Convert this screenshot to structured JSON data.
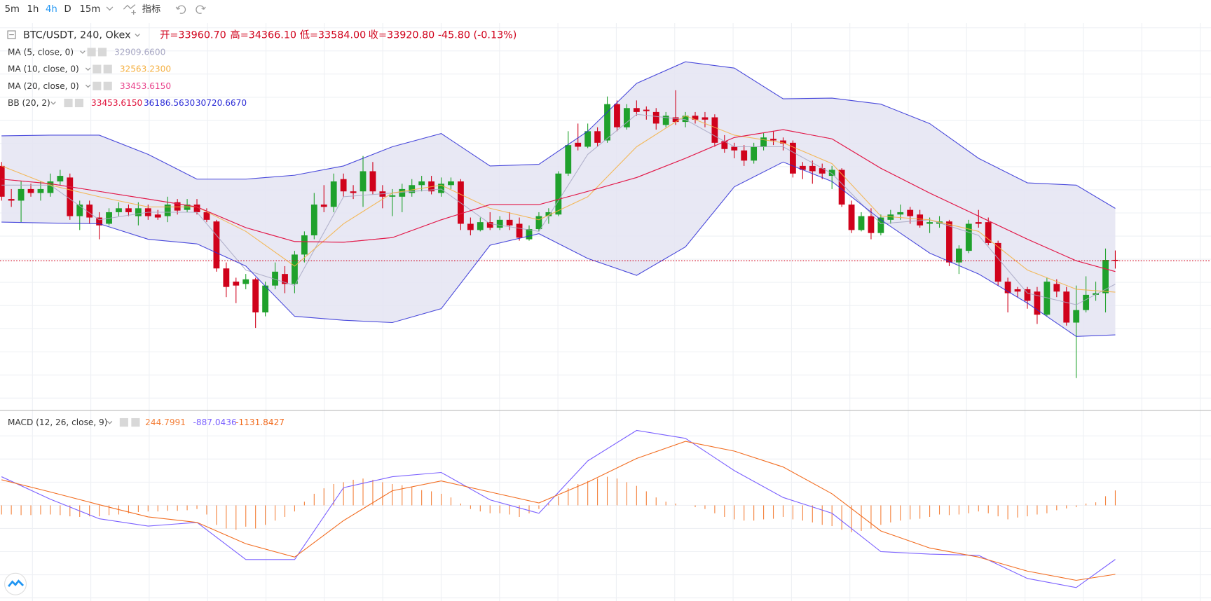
{
  "toolbar": {
    "intervals": [
      "5m",
      "1h",
      "4h",
      "D",
      "15m"
    ],
    "active": "4h",
    "indicators_button": "指标"
  },
  "header": {
    "symbol": "BTC/USDT, 240, Okex",
    "quote": [
      "开=33960.70",
      "高=34366.10",
      "低=33584.00",
      "收=33920.80",
      "-45.80 (-0.13%)"
    ]
  },
  "chart_data": {
    "type": "candlestick",
    "ylim": [
      27520,
      44190
    ],
    "up_color": "#1fa12c",
    "down_color": "#d0021b",
    "open": [
      38020,
      36590,
      36520,
      37020,
      36850,
      36850,
      37350,
      37520,
      35850,
      36350,
      35790,
      35520,
      36020,
      36190,
      35850,
      36190,
      35920,
      35850,
      36450,
      36120,
      36350,
      36020,
      35620,
      33590,
      33020,
      32920,
      33120,
      31690,
      32850,
      33350,
      32920,
      34190,
      35020,
      36350,
      36250,
      37450,
      36920,
      36920,
      37790,
      36920,
      36690,
      36690,
      36850,
      37190,
      37350,
      36850,
      37190,
      37350,
      35520,
      35250,
      35590,
      35350,
      35690,
      35520,
      34850,
      35290,
      35850,
      35920,
      37690,
      39020,
      38850,
      39520,
      39120,
      40690,
      39690,
      40520,
      40450,
      40350,
      39790,
      40120,
      39920,
      40190,
      40120,
      40120,
      39090,
      38850,
      38690,
      38250,
      38850,
      39190,
      39120,
      39020,
      38020,
      38020,
      37920,
      37590,
      37850,
      36350,
      35250,
      35850,
      35120,
      35690,
      35920,
      36120,
      35920,
      35520,
      35520,
      35620,
      33850,
      34350,
      35590,
      35590,
      34690,
      33020,
      32690,
      32690,
      32590,
      31590,
      32920,
      32590,
      31250,
      31790,
      32450,
      32520,
      33960.7
    ],
    "high": [
      38190,
      37020,
      37350,
      37250,
      37350,
      37690,
      37850,
      37690,
      36520,
      36520,
      36020,
      36190,
      36450,
      36350,
      36450,
      36350,
      36120,
      36690,
      36590,
      36590,
      36590,
      36190,
      35690,
      33850,
      33190,
      33350,
      33190,
      33020,
      33850,
      33690,
      34350,
      35190,
      36850,
      37190,
      37690,
      37690,
      37190,
      38450,
      38190,
      37190,
      37020,
      37250,
      37450,
      37590,
      37590,
      37520,
      37520,
      37450,
      35790,
      35790,
      36020,
      35850,
      36020,
      35790,
      35450,
      36020,
      36190,
      37790,
      39520,
      39850,
      39850,
      39690,
      41020,
      40850,
      40690,
      40850,
      40590,
      40520,
      40350,
      41290,
      40350,
      40350,
      40350,
      40250,
      39350,
      39020,
      38920,
      39020,
      39450,
      39520,
      39250,
      39120,
      38190,
      38250,
      38120,
      38020,
      37920,
      36520,
      36020,
      36190,
      35920,
      36120,
      36350,
      36250,
      36120,
      35790,
      35850,
      35690,
      34590,
      35690,
      36120,
      35790,
      34790,
      33190,
      32790,
      32790,
      32790,
      33190,
      33120,
      32790,
      32850,
      33250,
      33020,
      34450,
      34366.1
    ],
    "low": [
      36520,
      36250,
      35590,
      36690,
      36520,
      36690,
      37190,
      35690,
      35250,
      35520,
      34850,
      35450,
      35850,
      35850,
      35450,
      35690,
      35690,
      35590,
      35920,
      36020,
      35920,
      35590,
      33450,
      32350,
      32090,
      32690,
      31020,
      31520,
      32690,
      32520,
      32520,
      33850,
      34850,
      36020,
      36020,
      36690,
      36590,
      36250,
      36790,
      36190,
      35850,
      36020,
      36690,
      36920,
      36790,
      36690,
      37020,
      35250,
      35020,
      35190,
      35250,
      35250,
      35250,
      34790,
      34790,
      35190,
      35520,
      35850,
      37590,
      38690,
      38790,
      38850,
      39020,
      39520,
      39590,
      40190,
      40020,
      39590,
      39690,
      39790,
      39690,
      39850,
      39690,
      38850,
      38590,
      38350,
      38020,
      38120,
      38690,
      38920,
      38690,
      37520,
      37450,
      37250,
      37450,
      37020,
      36250,
      35120,
      35190,
      34850,
      35020,
      35520,
      35690,
      35520,
      35350,
      35120,
      35350,
      33690,
      33350,
      34250,
      35350,
      34590,
      32850,
      31690,
      32350,
      31850,
      31190,
      31520,
      32350,
      31120,
      28850,
      31690,
      32190,
      31690,
      33584
    ],
    "close": [
      36690,
      36520,
      37020,
      36850,
      37020,
      37350,
      37590,
      35850,
      36350,
      35790,
      35450,
      36020,
      36190,
      36020,
      36190,
      35850,
      35790,
      36350,
      36090,
      36350,
      36020,
      35690,
      33590,
      32790,
      32850,
      33120,
      31690,
      32850,
      33450,
      32920,
      34190,
      35020,
      36350,
      36250,
      37350,
      36920,
      36850,
      37790,
      36920,
      36690,
      36750,
      37020,
      37190,
      37350,
      36920,
      37250,
      37350,
      35520,
      35250,
      35590,
      35350,
      35690,
      35450,
      34920,
      35290,
      35850,
      36020,
      37690,
      38920,
      38850,
      39520,
      39020,
      40690,
      39690,
      40520,
      40350,
      40390,
      39850,
      40190,
      39920,
      40190,
      40020,
      40020,
      39020,
      38750,
      38690,
      38250,
      38850,
      39250,
      39120,
      38990,
      37690,
      37850,
      37790,
      37690,
      37850,
      36350,
      35250,
      35850,
      35120,
      35790,
      35920,
      36020,
      35850,
      35450,
      35590,
      35620,
      33850,
      34450,
      35520,
      35520,
      34690,
      33020,
      32520,
      32590,
      32190,
      31590,
      33020,
      32590,
      31250,
      31790,
      32450,
      32520,
      33960,
      33920.8
    ],
    "indicators": [
      {
        "name": "MA (5, close, 0)",
        "lines": [
          {
            "label": "32909.6600",
            "color": "#a8a8c4",
            "x": [
              0,
              5,
              10,
              15,
              20,
              25,
              30,
              35,
              40,
              45,
              50,
              55,
              60,
              65,
              70,
              75,
              80,
              85,
              90,
              95,
              100,
              105,
              110,
              114
            ],
            "values": [
              37190,
              37190,
              35690,
              36020,
              36020,
              33520,
              32850,
              36690,
              36850,
              37020,
              35520,
              35190,
              38520,
              40250,
              40020,
              38850,
              38850,
              37690,
              35520,
              35690,
              35020,
              32520,
              32020,
              32909.66
            ]
          }
        ]
      },
      {
        "name": "MA (10, close, 0)",
        "lines": [
          {
            "label": "32563.2300",
            "color": "#f5b041",
            "x": [
              0,
              5,
              10,
              15,
              20,
              25,
              30,
              35,
              40,
              45,
              50,
              55,
              60,
              65,
              70,
              75,
              80,
              85,
              90,
              95,
              100,
              105,
              110,
              114
            ],
            "values": [
              38020,
              37190,
              36690,
              36250,
              36250,
              35190,
              33690,
              35520,
              36850,
              37190,
              36190,
              35690,
              36690,
              38850,
              40190,
              39350,
              39020,
              38120,
              35850,
              35690,
              35190,
              33520,
              32690,
              32563.23
            ]
          }
        ]
      },
      {
        "name": "MA (20, close, 0)",
        "lines": [
          {
            "label": "33453.6150",
            "color": "#e8408a",
            "x": [
              0,
              5,
              10,
              15,
              20,
              25,
              30,
              35,
              40,
              45,
              50,
              55,
              60,
              65,
              70,
              75,
              80,
              85,
              90,
              95,
              100,
              105,
              110,
              114
            ],
            "values": [
              37450,
              37250,
              36920,
              36590,
              36250,
              35350,
              34750,
              34720,
              34920,
              35690,
              36350,
              36350,
              36920,
              37520,
              38350,
              39250,
              39590,
              39190,
              37920,
              36850,
              35850,
              34850,
              33920,
              33453.615
            ]
          }
        ]
      },
      {
        "name": "BB (20, 2)",
        "fill": "#e4e4f2",
        "lines": [
          {
            "label": "33453.6150",
            "color": "#e0103a",
            "x": [
              0,
              5,
              10,
              15,
              20,
              25,
              30,
              35,
              40,
              45,
              50,
              55,
              60,
              65,
              70,
              75,
              80,
              85,
              90,
              95,
              100,
              105,
              110,
              114
            ],
            "values": [
              37450,
              37250,
              36920,
              36590,
              36250,
              35350,
              34750,
              34720,
              34920,
              35690,
              36350,
              36350,
              36920,
              37520,
              38350,
              39250,
              39590,
              39190,
              37920,
              36850,
              35850,
              34850,
              33920,
              33453.615
            ]
          },
          {
            "label": "36186.5630",
            "color": "#2b2bd6",
            "x": [
              0,
              5,
              10,
              15,
              20,
              25,
              30,
              35,
              40,
              45,
              50,
              55,
              60,
              65,
              70,
              75,
              80,
              85,
              90,
              95,
              100,
              105,
              110,
              114
            ],
            "values": [
              39320,
              39350,
              39350,
              38520,
              37450,
              37450,
              37620,
              38020,
              38850,
              39420,
              38020,
              38090,
              39520,
              41590,
              42520,
              42250,
              40920,
              40950,
              40690,
              39850,
              38350,
              37290,
              37190,
              36186.563
            ]
          },
          {
            "label": "30720.6670",
            "color": "#2b2bd6",
            "x": [
              0,
              5,
              10,
              15,
              20,
              25,
              30,
              35,
              40,
              45,
              50,
              55,
              60,
              65,
              70,
              75,
              80,
              85,
              90,
              95,
              100,
              105,
              110,
              114
            ],
            "values": [
              35590,
              35550,
              35520,
              34850,
              34650,
              33690,
              31520,
              31350,
              31250,
              31850,
              34590,
              35090,
              34020,
              33290,
              34520,
              37120,
              38190,
              37350,
              35690,
              34250,
              33350,
              32090,
              30650,
              30720.667
            ]
          }
        ]
      }
    ]
  },
  "macd": {
    "type": "macd",
    "name": "MACD (12, 26, close, 9)",
    "ylim": [
      -1570,
      1520
    ],
    "histogram": {
      "label": "244.7991",
      "color": "#f4813b",
      "values": [
        -150,
        -150,
        -160,
        -160,
        -150,
        -150,
        -160,
        -180,
        -190,
        -180,
        -180,
        -160,
        -150,
        -130,
        -110,
        -100,
        -100,
        -90,
        -90,
        -80,
        -60,
        -150,
        -320,
        -380,
        -400,
        -350,
        -380,
        -320,
        -250,
        -190,
        -100,
        60,
        190,
        280,
        350,
        380,
        420,
        440,
        420,
        380,
        350,
        330,
        300,
        250,
        230,
        190,
        130,
        30,
        -60,
        -100,
        -130,
        -130,
        -150,
        -190,
        -130,
        -60,
        30,
        150,
        280,
        350,
        400,
        440,
        470,
        440,
        380,
        320,
        230,
        130,
        60,
        30,
        0,
        -30,
        -60,
        -130,
        -190,
        -230,
        -250,
        -250,
        -230,
        -220,
        -190,
        -230,
        -250,
        -280,
        -320,
        -340,
        -400,
        -440,
        -420,
        -380,
        -320,
        -280,
        -250,
        -230,
        -220,
        -190,
        -150,
        -160,
        -150,
        -130,
        -100,
        -130,
        -180,
        -230,
        -200,
        -180,
        -150,
        -130,
        -80,
        -50,
        -30,
        30,
        50,
        150,
        244.7991
      ]
    },
    "macd": {
      "label": "-887.0436",
      "color": "#7b61ff",
      "x": [
        0,
        5,
        10,
        15,
        20,
        25,
        30,
        35,
        40,
        45,
        50,
        55,
        60,
        65,
        70,
        75,
        80,
        85,
        90,
        95,
        100,
        105,
        110,
        114
      ],
      "values": [
        470,
        100,
        -220,
        -340,
        -280,
        -890,
        -890,
        290,
        470,
        540,
        90,
        -130,
        730,
        1230,
        1100,
        570,
        130,
        -130,
        -760,
        -800,
        -820,
        -1200,
        -1350,
        -887.0436
      ]
    },
    "signal": {
      "label": "-1131.8427",
      "color": "#f26d21",
      "x": [
        0,
        5,
        10,
        15,
        20,
        25,
        30,
        35,
        40,
        45,
        50,
        55,
        60,
        65,
        70,
        75,
        80,
        85,
        90,
        95,
        100,
        105,
        110,
        114
      ],
      "values": [
        420,
        220,
        10,
        -190,
        -280,
        -630,
        -850,
        -250,
        240,
        400,
        220,
        40,
        380,
        770,
        1050,
        890,
        630,
        190,
        -420,
        -700,
        -850,
        -1080,
        -1230,
        -1131.8427
      ]
    }
  }
}
